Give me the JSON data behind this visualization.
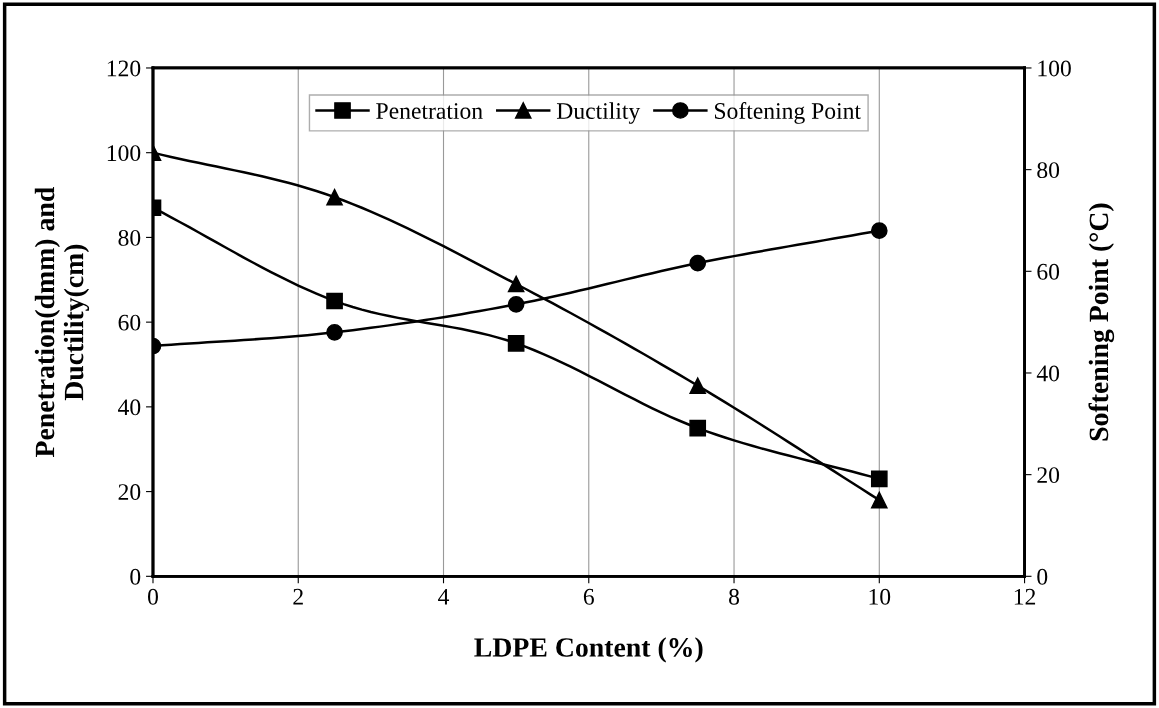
{
  "chart_data": {
    "type": "line",
    "xlabel": "LDPE Content (%)",
    "ylabel": "Penetration(dmm) and\nDuctility(cm)",
    "y2label": "Softening Point (°C)",
    "x": [
      0,
      2.5,
      5,
      7.5,
      10
    ],
    "series": [
      {
        "name": "Penetration",
        "color": "#000000",
        "marker": "square",
        "values": [
          87,
          65,
          55,
          35,
          23
        ]
      },
      {
        "name": "Ductility",
        "color": "#000000",
        "marker": "triangle",
        "values": [
          100,
          89.5,
          69,
          45,
          18
        ]
      },
      {
        "name": "Softening Point",
        "color": "#000000",
        "marker": "circle",
        "axis": "y2",
        "values": [
          45.3,
          48,
          53.5,
          61.6,
          68
        ]
      }
    ],
    "xlim": [
      0,
      12
    ],
    "xticks": [
      0,
      2,
      4,
      6,
      8,
      10,
      12
    ],
    "ylim": [
      0,
      120
    ],
    "yticks": [
      0,
      20,
      40,
      60,
      80,
      100,
      120
    ],
    "y2lim": [
      0,
      100
    ],
    "y2ticks": [
      0,
      20,
      40,
      60,
      80,
      100
    ],
    "grid": "x",
    "legend": "top",
    "line_style": "solid"
  }
}
